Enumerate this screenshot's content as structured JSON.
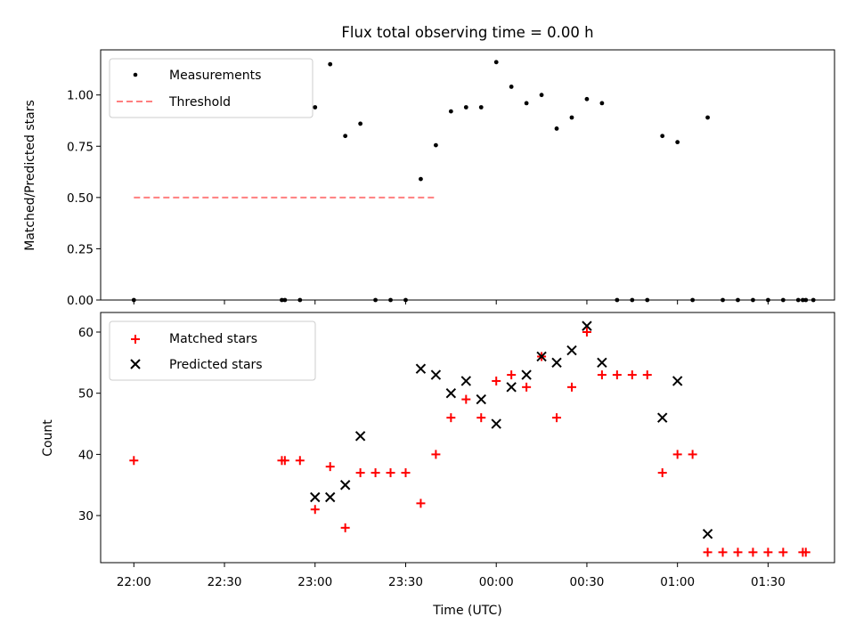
{
  "chart_data": [
    {
      "type": "scatter",
      "title": "Flux total observing time = 0.00 h",
      "xlabel": "",
      "ylabel": "Matched/Predicted stars",
      "ylim": [
        0,
        1.22
      ],
      "yticks": [
        0.0,
        0.25,
        0.5,
        0.75,
        1.0
      ],
      "ytick_labels": [
        "0.00",
        "0.25",
        "0.50",
        "0.75",
        "1.00"
      ],
      "legend_position": "top-left",
      "threshold": {
        "name": "Threshold",
        "value": 0.5,
        "x_start": 0,
        "x_end": 100,
        "color": "#ff7f7f"
      },
      "series": [
        {
          "name": "Measurements",
          "color": "#000000",
          "marker": "dot",
          "x": [
            0,
            49,
            50,
            55,
            60,
            65,
            70,
            75,
            80,
            85,
            90,
            95,
            100,
            105,
            110,
            115,
            120,
            125,
            130,
            135,
            140,
            145,
            150,
            155,
            160,
            165,
            170,
            175,
            180,
            185,
            190,
            195,
            200,
            205,
            210,
            215,
            220,
            225,
            221.5,
            222.5
          ],
          "y": [
            0.0,
            0.0,
            0.0,
            0.0,
            0.94,
            1.15,
            0.8,
            0.86,
            0.0,
            0.0,
            0.0,
            0.59,
            0.755,
            0.92,
            0.94,
            0.94,
            1.16,
            1.04,
            0.96,
            1.0,
            0.836,
            0.89,
            0.98,
            0.96,
            0.0,
            0.0,
            0.0,
            0.8,
            0.77,
            0.0,
            0.89,
            0.0,
            0.0,
            0.0,
            0.0,
            0.0,
            0.0,
            0.0,
            0.0,
            0.0
          ]
        }
      ]
    },
    {
      "type": "scatter",
      "title": "",
      "xlabel": "Time (UTC)",
      "ylabel": "Count",
      "ylim": [
        22.3,
        63.2
      ],
      "yticks": [
        30,
        40,
        50,
        60
      ],
      "ytick_labels": [
        "30",
        "40",
        "50",
        "60"
      ],
      "xlim": [
        -11,
        232
      ],
      "xticks": [
        0,
        30,
        60,
        90,
        120,
        150,
        180,
        210
      ],
      "xtick_labels": [
        "22:00",
        "22:30",
        "23:00",
        "23:30",
        "00:00",
        "00:30",
        "01:00",
        "01:30"
      ],
      "legend_position": "top-left",
      "series": [
        {
          "name": "Matched stars",
          "color": "#ff0000",
          "marker": "plus",
          "x": [
            0,
            49,
            50,
            55,
            60,
            65,
            70,
            75,
            80,
            85,
            90,
            95,
            100,
            105,
            110,
            115,
            120,
            125,
            130,
            135,
            140,
            145,
            150,
            155,
            160,
            165,
            170,
            175,
            180,
            185,
            190,
            195,
            200,
            205,
            210,
            215,
            221.5,
            222.5
          ],
          "y": [
            39,
            39,
            39,
            39,
            31,
            38,
            28,
            37,
            37,
            37,
            37,
            32,
            40,
            46,
            49,
            46,
            52,
            53,
            51,
            56,
            46,
            51,
            60,
            53,
            53,
            53,
            53,
            37,
            40,
            40,
            24,
            24,
            24,
            24,
            24,
            24,
            24,
            24
          ]
        },
        {
          "name": "Predicted stars",
          "color": "#000000",
          "marker": "x",
          "x": [
            60,
            65,
            70,
            75,
            95,
            100,
            105,
            110,
            115,
            120,
            125,
            130,
            135,
            140,
            145,
            150,
            155,
            175,
            180,
            190
          ],
          "y": [
            33,
            33,
            35,
            43,
            54,
            53,
            50,
            52,
            49,
            45,
            51,
            53,
            56,
            55,
            57,
            61,
            55,
            46,
            52,
            27
          ]
        }
      ]
    }
  ]
}
